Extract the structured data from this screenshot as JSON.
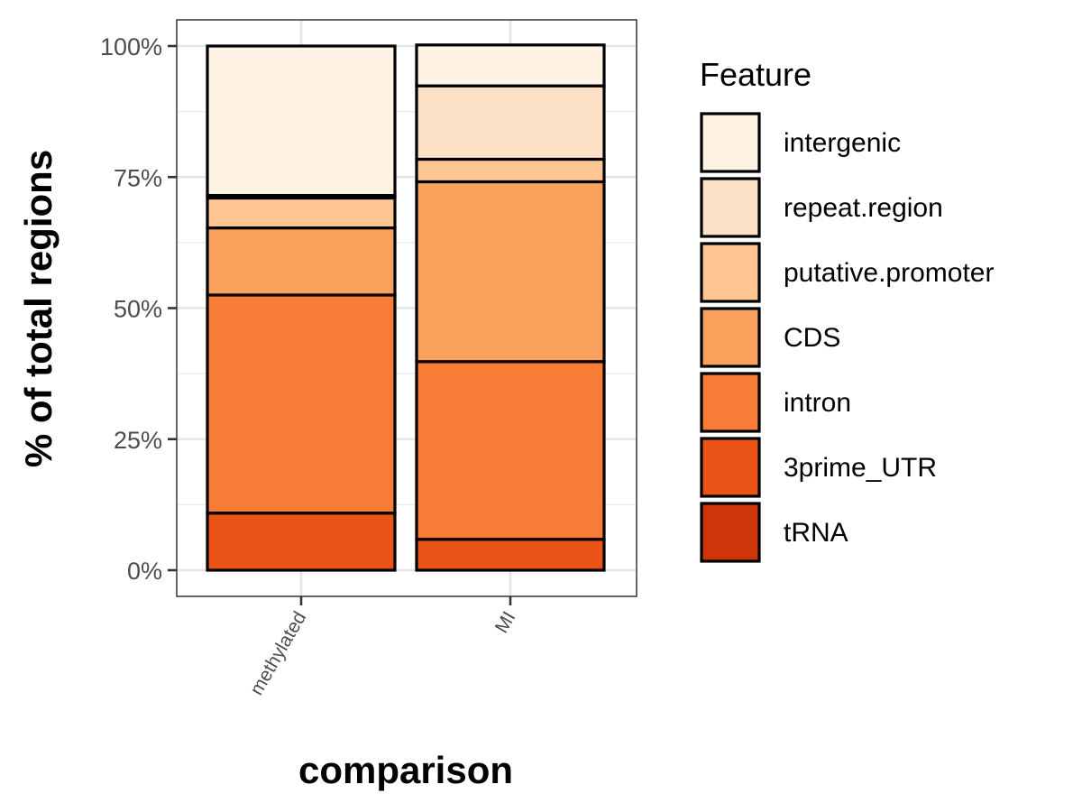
{
  "chart_data": {
    "type": "bar",
    "stacked": true,
    "percent": true,
    "xlabel": "comparison",
    "ylabel": "% of total regions",
    "categories": [
      "methylated",
      "MI"
    ],
    "y_ticks": [
      "0%",
      "25%",
      "50%",
      "75%",
      "100%"
    ],
    "ylim": [
      0,
      100
    ],
    "grid": true,
    "legend": {
      "title": "Feature",
      "position": "right"
    },
    "series": [
      {
        "name": "intergenic",
        "color": "#FFF3E5",
        "values": [
          28.5,
          7.8
        ]
      },
      {
        "name": "repeat.region",
        "color": "#FDE1C7",
        "values": [
          0.5,
          14.0
        ]
      },
      {
        "name": "putative.promoter",
        "color": "#FDC693",
        "values": [
          5.7,
          4.3
        ]
      },
      {
        "name": "CDS",
        "color": "#FBA15E",
        "values": [
          12.8,
          34.3
        ]
      },
      {
        "name": "intron",
        "color": "#F77C35",
        "values": [
          41.6,
          33.9
        ]
      },
      {
        "name": "3prime_UTR",
        "color": "#E95416",
        "values": [
          10.9,
          5.9
        ]
      },
      {
        "name": "tRNA",
        "color": "#CC3608",
        "values": [
          0.0,
          0.0
        ]
      }
    ]
  }
}
